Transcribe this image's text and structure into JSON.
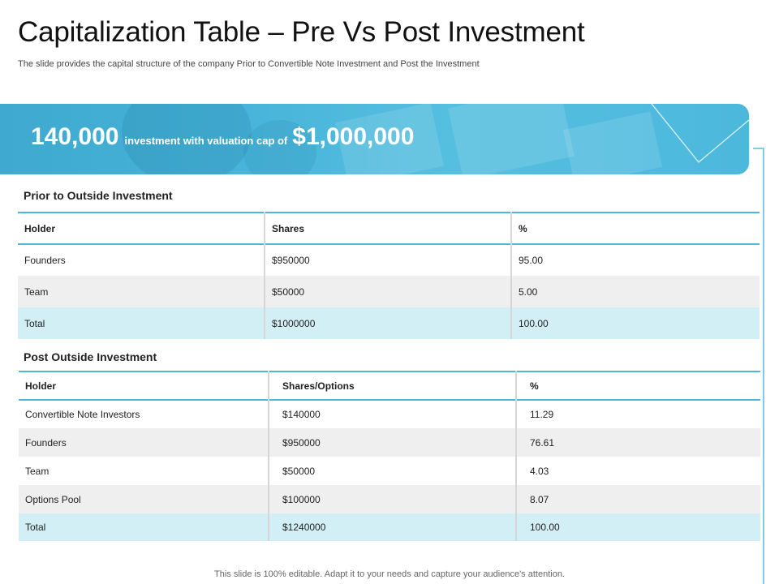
{
  "title": "Capitalization Table – Pre Vs Post Investment",
  "subtitle": "The slide provides the capital structure of the company Prior to Convertible Note Investment and Post the Investment",
  "banner": {
    "amount": "140,000",
    "middle_text": "investment with valuation cap of",
    "cap": "$1,000,000",
    "accent_color": "#46b3d8"
  },
  "prior": {
    "title": "Prior to Outside Investment",
    "headers": [
      "Holder",
      "Shares",
      "%"
    ],
    "rows": [
      [
        "Founders",
        "$950000",
        "95.00"
      ],
      [
        "Team",
        "$50000",
        "5.00"
      ],
      [
        "Total",
        "$1000000",
        "100.00"
      ]
    ]
  },
  "post": {
    "title": "Post Outside Investment",
    "headers": [
      "Holder",
      "Shares/Options",
      "%"
    ],
    "rows": [
      [
        "Convertible Note Investors",
        "$140000",
        "11.29"
      ],
      [
        "Founders",
        "$950000",
        "76.61"
      ],
      [
        "Team",
        "$50000",
        "4.03"
      ],
      [
        "Options Pool",
        "$100000",
        "8.07"
      ],
      [
        "Total",
        "$1240000",
        "100.00"
      ]
    ]
  },
  "footer": "This slide is 100% editable. Adapt it to your needs and capture your audience's attention."
}
